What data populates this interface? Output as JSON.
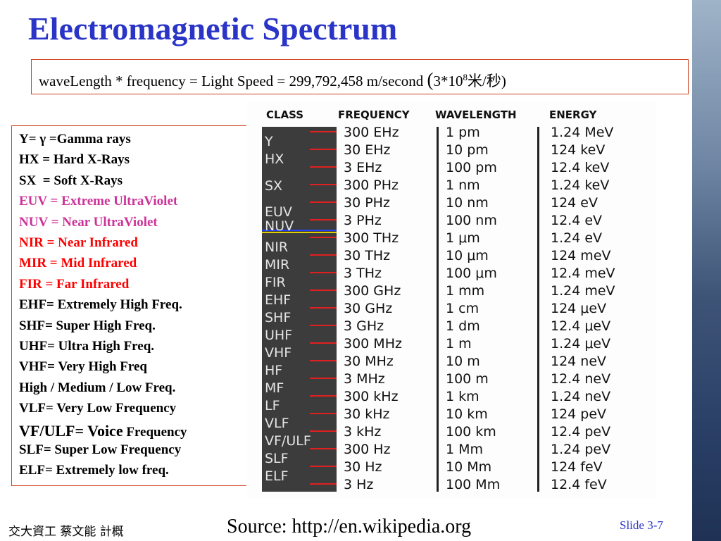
{
  "title": "Electromagnetic Spectrum",
  "formula": {
    "text": "waveLength * frequency = Light Speed = 299,792,458 m/second ",
    "paren_open": "(",
    "base": "3*10",
    "exponent": "8",
    "unit": "米/秒",
    "paren_close": ")"
  },
  "legend": [
    {
      "text": "Y= γ =Gamma rays",
      "color": "#000000"
    },
    {
      "text": "HX = Hard X-Rays",
      "color": "#000000"
    },
    {
      "text": "SX  = Soft X-Rays",
      "color": "#000000"
    },
    {
      "text": "EUV = Extreme UltraViolet",
      "color": "#cc3399"
    },
    {
      "text": "NUV = Near UltraViolet",
      "color": "#cc3399"
    },
    {
      "text": "NIR = Near Infrared",
      "color": "#ff0000"
    },
    {
      "text": "MIR = Mid Infrared",
      "color": "#ff0000"
    },
    {
      "text": "FIR = Far Infrared",
      "color": "#ff0000"
    },
    {
      "text": "EHF= Extremely High Freq.",
      "color": "#000000"
    },
    {
      "text": "SHF= Super High Freq.",
      "color": "#000000"
    },
    {
      "text": "UHF= Ultra High Freq.",
      "color": "#000000"
    },
    {
      "text": "VHF= Very High Freq",
      "color": "#000000"
    },
    {
      "text": "High / Medium / Low Freq.",
      "color": "#000000"
    },
    {
      "text": "VLF= Very Low Frequency",
      "color": "#000000"
    },
    {
      "text": "VF/ULF= Voice",
      "suffix": "Frequency",
      "color": "#000000"
    },
    {
      "text": "SLF= Super Low Frequency",
      "color": "#000000"
    },
    {
      "text": "ELF= Extremely low freq.",
      "color": "#000000"
    }
  ],
  "table": {
    "headers": [
      "CLASS",
      "FREQUENCY",
      "WAVELENGTH",
      "ENERGY"
    ],
    "classes": [
      "Y",
      "HX",
      "SX",
      "EUV",
      "NUV",
      "NIR",
      "MIR",
      "FIR",
      "EHF",
      "SHF",
      "UHF",
      "VHF",
      "HF",
      "MF",
      "LF",
      "VLF",
      "VF/ULF",
      "SLF",
      "ELF"
    ],
    "rows": [
      [
        "300 EHz",
        "1 pm",
        "1.24 MeV"
      ],
      [
        "30 EHz",
        "10 pm",
        "124 keV"
      ],
      [
        "3 EHz",
        "100 pm",
        "12.4 keV"
      ],
      [
        "300 PHz",
        "1 nm",
        "1.24 keV"
      ],
      [
        "30 PHz",
        "10 nm",
        "124 eV"
      ],
      [
        "3 PHz",
        "100 nm",
        "12.4 eV"
      ],
      [
        "300 THz",
        "1 μm",
        "1.24 eV"
      ],
      [
        "30 THz",
        "10 μm",
        "124 meV"
      ],
      [
        "3 THz",
        "100 μm",
        "12.4 meV"
      ],
      [
        "300 GHz",
        "1 mm",
        "1.24 meV"
      ],
      [
        "30 GHz",
        "1 cm",
        "124 μeV"
      ],
      [
        "3 GHz",
        "1 dm",
        "12.4 μeV"
      ],
      [
        "300 MHz",
        "1 m",
        "1.24 μeV"
      ],
      [
        "30 MHz",
        "10 m",
        "124 neV"
      ],
      [
        "3 MHz",
        "100 m",
        "12.4 neV"
      ],
      [
        "300 kHz",
        "1 km",
        "1.24 neV"
      ],
      [
        "30 kHz",
        "10 km",
        "124 peV"
      ],
      [
        "3 kHz",
        "100 km",
        "12.4 peV"
      ],
      [
        "300 Hz",
        "1 Mm",
        "1.24 peV"
      ],
      [
        "30 Hz",
        "10 Mm",
        "124 feV"
      ],
      [
        "3 Hz",
        "100 Mm",
        "12.4 feV"
      ]
    ]
  },
  "footer": {
    "author": "交大資工 蔡文能 計概",
    "source": "Source: http://en.wikipedia.org",
    "slide": "Slide 3-7"
  }
}
